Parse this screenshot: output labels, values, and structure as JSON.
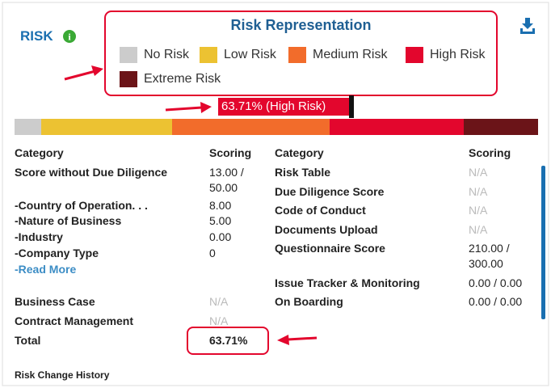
{
  "header": {
    "title": "RISK"
  },
  "legend": {
    "title": "Risk Representation",
    "items": [
      {
        "label": "No Risk",
        "color": "#cccccc"
      },
      {
        "label": "Low Risk",
        "color": "#ecc232"
      },
      {
        "label": "Medium Risk",
        "color": "#f26c2b"
      },
      {
        "label": "High Risk",
        "color": "#e3062d"
      },
      {
        "label": "Extreme Risk",
        "color": "#6b1418"
      }
    ]
  },
  "marker": {
    "label": "63.71% (High Risk)"
  },
  "left_table": {
    "headers": [
      "Category",
      "Scoring"
    ],
    "rows": [
      [
        "Score without Due Diligence",
        "13.00 / 50.00"
      ],
      [
        "-Country of Operation. . .",
        "8.00"
      ],
      [
        "-Nature of Business",
        "5.00"
      ],
      [
        "-Industry",
        "0.00"
      ],
      [
        "-Company Type",
        "0"
      ],
      [
        "-Read More",
        null
      ],
      [
        "Business Case",
        "N/A"
      ],
      [
        "Contract Management",
        "N/A"
      ],
      [
        "Total",
        "63.71%"
      ]
    ]
  },
  "right_table": {
    "headers": [
      "Category",
      "Scoring"
    ],
    "rows": [
      [
        "Risk Table",
        "N/A"
      ],
      [
        "Due Diligence Score",
        "N/A"
      ],
      [
        "Code of Conduct",
        "N/A"
      ],
      [
        "Documents Upload",
        "N/A"
      ],
      [
        "Questionnaire Score",
        "210.00 / 300.00"
      ],
      [
        "Issue Tracker & Monitoring",
        "0.00 / 0.00"
      ],
      [
        "On Boarding",
        "0.00 / 0.00"
      ]
    ]
  },
  "footer": {
    "title": "Risk Change History"
  }
}
